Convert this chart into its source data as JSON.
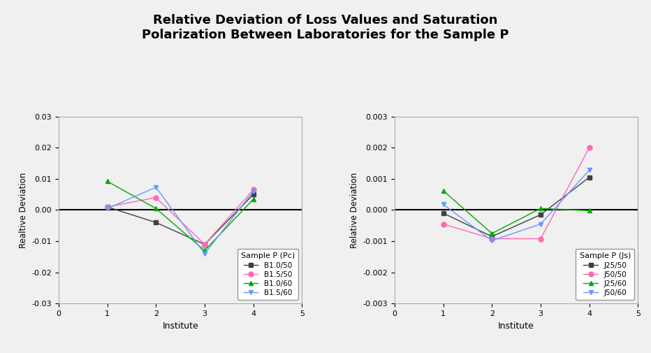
{
  "title": "Relative Deviation of Loss Values and Saturation\nPolarization Between Laboratories for the Sample P",
  "title_fontsize": 13,
  "title_fontweight": "bold",
  "bg_color": "#f0f0f0",
  "left_plot": {
    "legend_title": "Sample P (Pc)",
    "ylabel": "Realtive Deviation",
    "xlabel": "Institute",
    "xlim": [
      0,
      5
    ],
    "ylim": [
      -0.03,
      0.03
    ],
    "yticks": [
      -0.03,
      -0.02,
      -0.01,
      0.0,
      0.01,
      0.02,
      0.03
    ],
    "xticks": [
      0,
      1,
      2,
      3,
      4,
      5
    ],
    "series": [
      {
        "label": "B1.0/50",
        "color": "#404040",
        "marker": "s",
        "x": [
          1,
          2,
          3,
          4
        ],
        "y": [
          0.001,
          -0.004,
          -0.011,
          0.005
        ]
      },
      {
        "label": "B1.5/50",
        "color": "#ff69b4",
        "marker": "o",
        "x": [
          1,
          2,
          3,
          4
        ],
        "y": [
          0.001,
          0.004,
          -0.011,
          0.0065
        ]
      },
      {
        "label": "B1.0/60",
        "color": "#00aa00",
        "marker": "^",
        "x": [
          1,
          2,
          3,
          4
        ],
        "y": [
          0.0092,
          0.0005,
          -0.013,
          0.0035
        ]
      },
      {
        "label": "B1.5/60",
        "color": "#6699ff",
        "marker": "v",
        "x": [
          1,
          2,
          3,
          4
        ],
        "y": [
          0.0005,
          0.0073,
          -0.014,
          0.006
        ]
      }
    ]
  },
  "right_plot": {
    "legend_title": "Sample P (Js)",
    "ylabel": "Relative Deviation",
    "xlabel": "Institute",
    "xlim": [
      0,
      5
    ],
    "ylim": [
      -0.003,
      0.003
    ],
    "yticks": [
      -0.003,
      -0.002,
      -0.001,
      0.0,
      0.001,
      0.002,
      0.003
    ],
    "xticks": [
      0,
      1,
      2,
      3,
      4,
      5
    ],
    "series": [
      {
        "label": "J25/50",
        "color": "#404040",
        "marker": "s",
        "x": [
          1,
          2,
          3,
          4
        ],
        "y": [
          -0.0001,
          -0.00085,
          -0.00015,
          0.00105
        ]
      },
      {
        "label": "J50/50",
        "color": "#ff69b4",
        "marker": "o",
        "x": [
          1,
          2,
          3,
          4
        ],
        "y": [
          -0.00045,
          -0.00092,
          -0.00092,
          0.002
        ]
      },
      {
        "label": "J25/60",
        "color": "#00aa00",
        "marker": "^",
        "x": [
          1,
          2,
          3,
          4
        ],
        "y": [
          0.00062,
          -0.00075,
          5e-05,
          -2e-05
        ]
      },
      {
        "label": "J50/60",
        "color": "#6699ff",
        "marker": "v",
        "x": [
          1,
          2,
          3,
          4
        ],
        "y": [
          0.00018,
          -0.00098,
          -0.00045,
          0.00128
        ]
      }
    ]
  }
}
